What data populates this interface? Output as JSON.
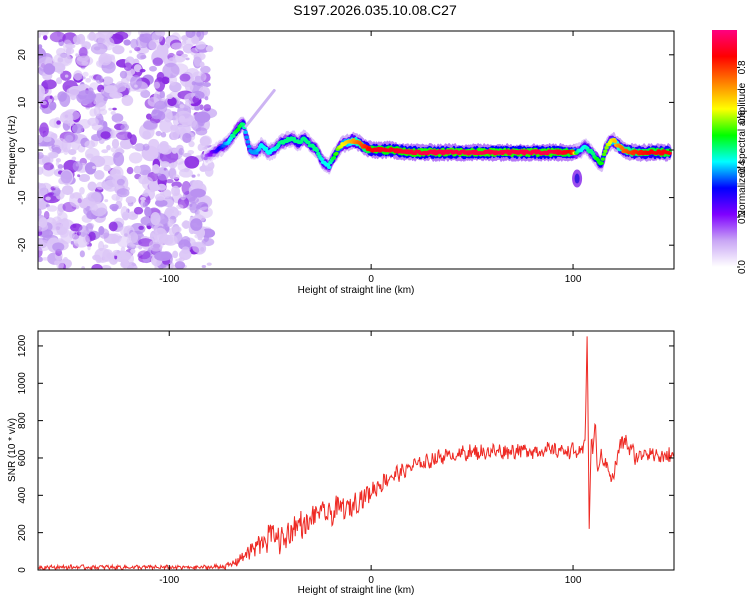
{
  "title": "S197.2026.035.10.08.C27",
  "chart_data": [
    {
      "type": "heatmap",
      "name": "spectrogram",
      "xlabel": "Height of straight line (km)",
      "ylabel": "Frequency (Hz)",
      "xlim": [
        -165,
        150
      ],
      "ylim": [
        -25,
        25
      ],
      "xticks": [
        -100,
        0,
        100
      ],
      "xtick_labels": [
        "-100",
        "0",
        "100"
      ],
      "yticks": [
        -20,
        -10,
        0,
        10,
        20
      ],
      "ytick_labels": [
        "-20",
        "-10",
        "0",
        "10",
        "20"
      ],
      "noise_region_x": [
        -165,
        -80
      ],
      "signal_track": {
        "x": [
          -82,
          -78,
          -74,
          -70,
          -66,
          -63,
          -62,
          -60,
          -57,
          -54,
          -51,
          -48,
          -45,
          -42,
          -39,
          -36,
          -33,
          -30,
          -27,
          -24,
          -21,
          -18,
          -15,
          -12,
          -9,
          -6,
          -3,
          0,
          5,
          10,
          20,
          30,
          40,
          50,
          60,
          70,
          80,
          90,
          98,
          100,
          102,
          104,
          106,
          108,
          110,
          112,
          114,
          116,
          118,
          120,
          122,
          125,
          130,
          140,
          148
        ],
        "y": [
          -1.5,
          -0.5,
          0.5,
          2,
          4.5,
          5.5,
          3,
          0,
          -0.5,
          1,
          -0.5,
          0,
          1.5,
          2,
          2.5,
          1.5,
          2.5,
          1,
          0,
          -2.5,
          -3.5,
          -1,
          1,
          1.5,
          2,
          1.5,
          0.5,
          0,
          0,
          0,
          -0.5,
          -0.5,
          -0.5,
          -0.5,
          -0.5,
          -0.5,
          -0.5,
          -0.5,
          -0.5,
          -0.5,
          -0.5,
          0,
          1,
          0,
          -1,
          -2,
          -3,
          0,
          1.5,
          2,
          1,
          0,
          -0.5,
          -0.5,
          -0.5
        ],
        "amplitude": [
          0.15,
          0.25,
          0.35,
          0.45,
          0.55,
          0.5,
          0.4,
          0.4,
          0.4,
          0.45,
          0.45,
          0.45,
          0.5,
          0.5,
          0.5,
          0.5,
          0.5,
          0.5,
          0.5,
          0.45,
          0.45,
          0.55,
          0.65,
          0.7,
          0.75,
          0.8,
          0.85,
          0.9,
          0.92,
          0.92,
          0.94,
          0.95,
          0.95,
          0.95,
          0.95,
          0.95,
          0.95,
          0.95,
          0.9,
          0.85,
          0.5,
          0.45,
          0.45,
          0.5,
          0.5,
          0.55,
          0.55,
          0.6,
          0.65,
          0.7,
          0.75,
          0.8,
          0.85,
          0.9,
          0.9
        ]
      },
      "colorbar": {
        "label": "Normalized spectral amplitude",
        "range": [
          0,
          0.95
        ],
        "ticks": [
          0.0,
          0.2,
          0.4,
          0.6,
          0.8
        ],
        "tick_labels": [
          "0.0",
          "0.2",
          "0.4",
          "0.6",
          "0.8"
        ],
        "colors": [
          "#ffffff",
          "#c9a6f5",
          "#7f00ff",
          "#0000ff",
          "#00ffff",
          "#00ff00",
          "#ffff00",
          "#ff8000",
          "#ff0000",
          "#ff0080"
        ]
      }
    },
    {
      "type": "line",
      "name": "snr",
      "xlabel": "Height of straight line (km)",
      "ylabel": "SNR (10 * v/v)",
      "xlim": [
        -165,
        150
      ],
      "ylim": [
        0,
        1280
      ],
      "xticks": [
        -100,
        0,
        100
      ],
      "xtick_labels": [
        "-100",
        "0",
        "100"
      ],
      "yticks": [
        0,
        200,
        400,
        600,
        800,
        1000,
        1200
      ],
      "ytick_labels": [
        "0",
        "200",
        "400",
        "600",
        "800",
        "1000",
        "1200"
      ],
      "color": "#ee2a24",
      "x": [
        -165,
        -150,
        -135,
        -120,
        -105,
        -90,
        -80,
        -72,
        -68,
        -64,
        -60,
        -56,
        -52,
        -48,
        -44,
        -40,
        -36,
        -32,
        -28,
        -24,
        -20,
        -16,
        -12,
        -8,
        -4,
        0,
        4,
        8,
        12,
        16,
        20,
        24,
        28,
        32,
        36,
        40,
        45,
        50,
        55,
        60,
        65,
        70,
        75,
        80,
        85,
        90,
        95,
        100,
        103,
        105,
        106,
        107,
        108,
        109,
        110,
        111,
        112,
        113,
        114,
        115,
        117,
        120,
        122,
        125,
        128,
        132,
        136,
        140,
        145,
        150
      ],
      "y": [
        15,
        15,
        15,
        15,
        14,
        14,
        15,
        20,
        35,
        70,
        100,
        130,
        170,
        200,
        150,
        210,
        250,
        230,
        300,
        310,
        290,
        340,
        320,
        360,
        390,
        420,
        455,
        490,
        510,
        530,
        555,
        570,
        580,
        600,
        610,
        615,
        625,
        630,
        630,
        635,
        635,
        640,
        640,
        640,
        640,
        640,
        640,
        640,
        620,
        640,
        700,
        1280,
        220,
        700,
        650,
        820,
        520,
        560,
        600,
        590,
        560,
        480,
        620,
        700,
        650,
        600,
        640,
        620,
        600,
        620
      ],
      "noise_amplitude": [
        10,
        10,
        10,
        10,
        10,
        10,
        10,
        12,
        20,
        30,
        45,
        55,
        65,
        70,
        70,
        65,
        65,
        60,
        60,
        60,
        60,
        55,
        55,
        50,
        50,
        45,
        40,
        40,
        40,
        35,
        35,
        35,
        35,
        35,
        35,
        35,
        35,
        35,
        35,
        35,
        35,
        35,
        35,
        35,
        35,
        35,
        35,
        35,
        40,
        40,
        0,
        0,
        0,
        0,
        60,
        0,
        0,
        0,
        60,
        40,
        40,
        40,
        40,
        40,
        40,
        40,
        40,
        40,
        40,
        40
      ]
    }
  ]
}
